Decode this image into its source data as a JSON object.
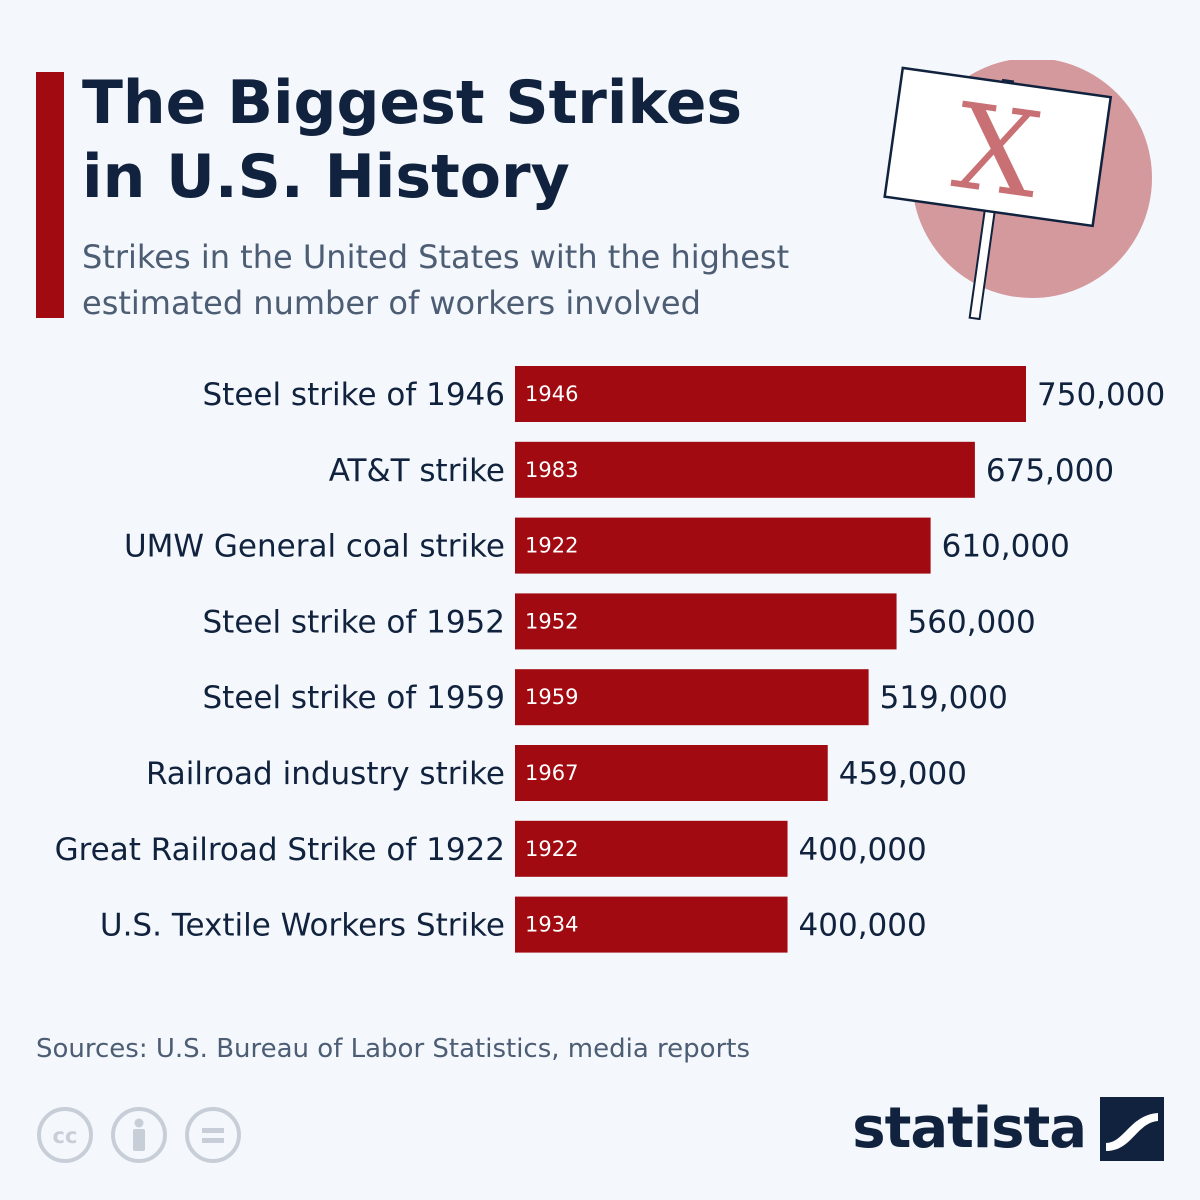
{
  "header": {
    "title_line1": "The Biggest Strikes",
    "title_line2": "in U.S. History",
    "subtitle_line1": "Strikes in the United States with the highest",
    "subtitle_line2": "estimated number of workers involved"
  },
  "colors": {
    "bar": "#a10a10",
    "accent": "#a10a10",
    "text": "#10223d",
    "muted": "#4c5d74",
    "background": "#f4f7fb",
    "sign_circle": "#d4999d"
  },
  "illustration": {
    "icon": "protest-sign-icon",
    "sign_letter": "X"
  },
  "chart_data": {
    "type": "bar",
    "orientation": "horizontal",
    "title": "The Biggest Strikes in U.S. History",
    "xlabel": "",
    "ylabel": "",
    "xlim": [
      0,
      750000
    ],
    "grid": false,
    "categories": [
      "Steel strike of 1946",
      "AT&T strike",
      "UMW General coal strike",
      "Steel strike of 1952",
      "Steel strike of 1959",
      "Railroad industry strike",
      "Great Railroad Strike of 1922",
      "U.S. Textile Workers Strike"
    ],
    "years": [
      "1946",
      "1983",
      "1922",
      "1952",
      "1959",
      "1967",
      "1922",
      "1934"
    ],
    "values": [
      750000,
      675000,
      610000,
      560000,
      519000,
      459000,
      400000,
      400000
    ],
    "value_labels": [
      "750,000",
      "675,000",
      "610,000",
      "560,000",
      "519,000",
      "459,000",
      "400,000",
      "400,000"
    ]
  },
  "footer": {
    "source": "Sources: U.S. Bureau of Labor Statistics, media reports",
    "license_icons": [
      "creative-commons-icon",
      "attribution-icon",
      "no-derivatives-icon"
    ],
    "brand": "statista",
    "brand_icon": "statista-logo-icon"
  }
}
